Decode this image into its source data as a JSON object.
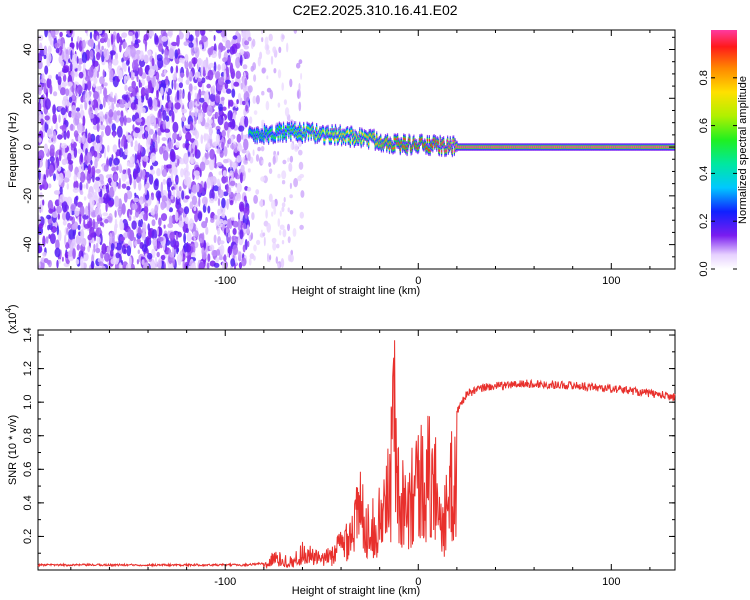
{
  "title": "C2E2.2025.310.16.41.E02",
  "chart_data": [
    {
      "type": "heatmap",
      "xlabel": "Height of straight line (km)",
      "ylabel": "Frequency (Hz)",
      "xlim": [
        -197,
        133
      ],
      "ylim": [
        -50,
        48
      ],
      "xticks": [
        -100,
        0,
        100
      ],
      "xtick_labels": [
        "-100",
        "0",
        "100"
      ],
      "yticks": [
        -40,
        -20,
        0,
        20,
        40
      ],
      "ytick_labels": [
        "-40",
        "-20",
        "0",
        "20",
        "40"
      ],
      "colorbar": {
        "label": "Normalized spectral amplitude",
        "range": [
          0.0,
          1.0
        ],
        "ticks": [
          0.0,
          0.2,
          0.4,
          0.6,
          0.8
        ],
        "tick_labels": [
          "0.0",
          "0.2",
          "0.4",
          "0.6",
          "0.8"
        ]
      },
      "noise_region_x": [
        -197,
        -88
      ],
      "sparse_region_x": [
        -88,
        -60
      ],
      "signal_track": [
        {
          "x": -88,
          "f": 5,
          "amp": 0.5
        },
        {
          "x": -70,
          "f": 6,
          "amp": 0.55
        },
        {
          "x": -60,
          "f": 6,
          "amp": 0.6
        },
        {
          "x": -45,
          "f": 5,
          "amp": 0.7
        },
        {
          "x": -30,
          "f": 4,
          "amp": 0.75
        },
        {
          "x": -20,
          "f": 2.5,
          "amp": 0.8
        },
        {
          "x": -10,
          "f": 1,
          "amp": 0.9
        },
        {
          "x": 0,
          "f": 1,
          "amp": 0.9
        },
        {
          "x": 10,
          "f": 0.5,
          "amp": 0.95
        },
        {
          "x": 20,
          "f": 0,
          "amp": 1.0
        },
        {
          "x": 133,
          "f": 0,
          "amp": 1.0
        }
      ]
    },
    {
      "type": "line",
      "xlabel": "Height of straight line (km)",
      "ylabel": "SNR (10 * v/v)",
      "y_multiplier_label": "(x10",
      "y_multiplier_exp": "4",
      "y_multiplier_close": ")",
      "xlim": [
        -197,
        133
      ],
      "ylim": [
        0,
        1.43
      ],
      "xticks": [
        -100,
        0,
        100
      ],
      "xtick_labels": [
        "-100",
        "0",
        "100"
      ],
      "yticks": [
        0.2,
        0.4,
        0.6,
        0.8,
        1.0,
        1.2,
        1.4
      ],
      "ytick_labels": [
        "0.2",
        "0.4",
        "0.6",
        "0.8",
        "1.0",
        "1.2",
        "1.4"
      ],
      "color": "#e8302c",
      "series_envelope": [
        {
          "x": -197,
          "y": 0.03
        },
        {
          "x": -90,
          "y": 0.03
        },
        {
          "x": -80,
          "y": 0.04
        },
        {
          "x": -75,
          "y": 0.12
        },
        {
          "x": -65,
          "y": 0.08
        },
        {
          "x": -60,
          "y": 0.18
        },
        {
          "x": -50,
          "y": 0.1
        },
        {
          "x": -45,
          "y": 0.15
        },
        {
          "x": -38,
          "y": 0.3
        },
        {
          "x": -30,
          "y": 0.6
        },
        {
          "x": -25,
          "y": 0.4
        },
        {
          "x": -20,
          "y": 0.5
        },
        {
          "x": -15,
          "y": 0.8
        },
        {
          "x": -12,
          "y": 1.42
        },
        {
          "x": -8,
          "y": 0.7
        },
        {
          "x": -4,
          "y": 0.85
        },
        {
          "x": 0,
          "y": 0.9
        },
        {
          "x": 5,
          "y": 0.95
        },
        {
          "x": 10,
          "y": 0.8
        },
        {
          "x": 13,
          "y": 0.45
        },
        {
          "x": 18,
          "y": 0.9
        },
        {
          "x": 25,
          "y": 1.05
        },
        {
          "x": 35,
          "y": 1.09
        },
        {
          "x": 55,
          "y": 1.11
        },
        {
          "x": 80,
          "y": 1.1
        },
        {
          "x": 110,
          "y": 1.07
        },
        {
          "x": 133,
          "y": 1.03
        }
      ]
    }
  ]
}
